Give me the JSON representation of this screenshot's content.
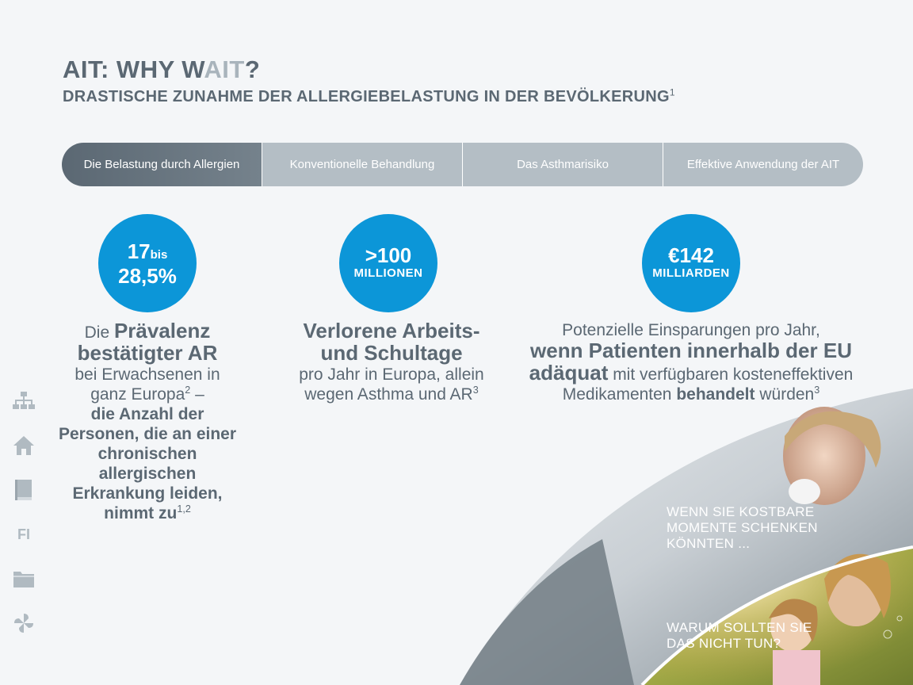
{
  "header": {
    "title_a": "AIT: WHY W",
    "title_b": "AIT",
    "title_c": "?",
    "subtitle": "DRASTISCHE ZUNAHME DER ALLERGIEBELASTUNG IN DER BEVÖLKERUNG",
    "subtitle_sup": "1"
  },
  "tabs": [
    {
      "label": "Die Belastung durch Allergien",
      "active": true
    },
    {
      "label": "Konventionelle Behandlung",
      "active": false
    },
    {
      "label": "Das Asthmarisiko",
      "active": false
    },
    {
      "label": "Effektive Anwendung der AIT",
      "active": false
    }
  ],
  "stat1": {
    "value_a": "17",
    "value_bis": "bis",
    "value_b": "28,5%",
    "t1": "Die ",
    "t2": "Prävalenz bestätigter AR",
    "t3": "bei Erwachsenen in ganz Europa",
    "t3_sup": "2",
    "t4": " –",
    "t5": "die Anzahl der Personen, die an einer chronischen allergischen Erkrankung leiden, nimmt zu",
    "t5_sup": "1,2"
  },
  "stat2": {
    "value": ">100",
    "unit": "MILLIONEN",
    "t1": "Verlorene Arbeits- und Schultage",
    "t2": "pro Jahr in Europa, allein wegen Asthma und AR",
    "t2_sup": "3"
  },
  "stat3": {
    "value": "€142",
    "unit": "MILLIARDEN",
    "t1": "Potenzielle Einsparungen pro Jahr,",
    "t2": "wenn Patienten innerhalb der EU adäquat",
    "t3": " mit verfügbaren kosteneffektiven Medikamenten ",
    "t4": "behandelt",
    "t5": " würden",
    "t5_sup": "3"
  },
  "photo": {
    "caption1": "WENN SIE KOSTBARE MOMENTE SCHENKEN KÖNNTEN ...",
    "caption2": "WARUM SOLLTEN SIE DAS NICHT TUN?"
  },
  "sidebar": {
    "fi_label": "FI"
  },
  "colors": {
    "accent": "#0c96d8",
    "text": "#5b6873",
    "tab_inactive": "#b4bec5"
  }
}
